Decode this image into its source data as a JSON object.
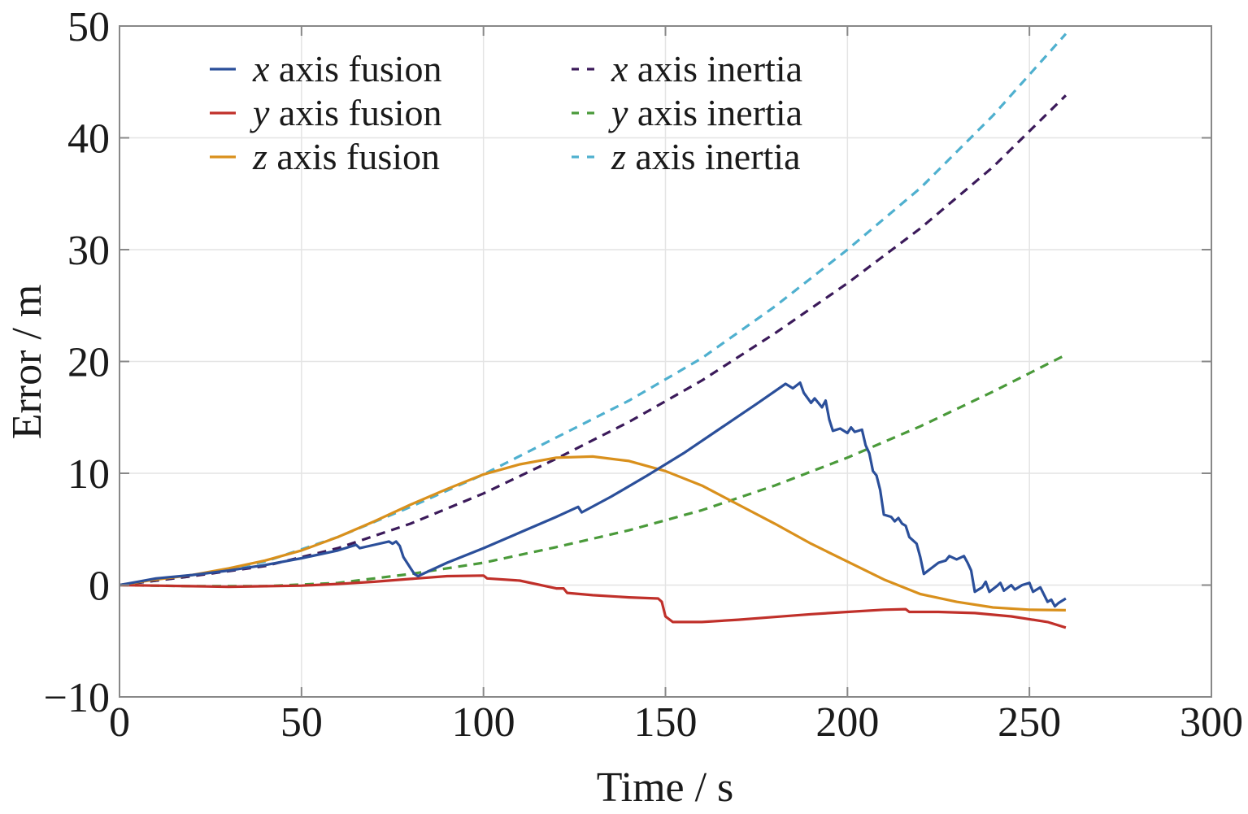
{
  "chart_data": {
    "type": "line",
    "xlabel": "Time / s",
    "ylabel": "Error / m",
    "xlim": [
      0,
      300
    ],
    "ylim": [
      -10,
      50
    ],
    "x_ticks": [
      0,
      50,
      100,
      150,
      200,
      250,
      300
    ],
    "y_ticks": [
      -10,
      0,
      10,
      20,
      30,
      40,
      50
    ],
    "x_tick_labels": [
      "0",
      "50",
      "100",
      "150",
      "200",
      "250",
      "300"
    ],
    "y_tick_labels": [
      "−10",
      "0",
      "10",
      "20",
      "30",
      "40",
      "50"
    ],
    "grid": true,
    "legend_position": "top-left",
    "series": [
      {
        "key": "x_fusion",
        "var": "x",
        "rest": " axis fusion",
        "color": "#2b4f9a",
        "dash": "solid",
        "points": [
          [
            0,
            0
          ],
          [
            5,
            0.3
          ],
          [
            10,
            0.6
          ],
          [
            20,
            0.9
          ],
          [
            30,
            1.3
          ],
          [
            40,
            1.8
          ],
          [
            50,
            2.4
          ],
          [
            60,
            3.1
          ],
          [
            65,
            3.6
          ],
          [
            66,
            3.3
          ],
          [
            70,
            3.6
          ],
          [
            74,
            3.9
          ],
          [
            75,
            3.7
          ],
          [
            76,
            3.9
          ],
          [
            77,
            3.5
          ],
          [
            78,
            2.5
          ],
          [
            80,
            1.5
          ],
          [
            81,
            1.0
          ],
          [
            82,
            0.8
          ],
          [
            90,
            2.0
          ],
          [
            100,
            3.3
          ],
          [
            110,
            4.7
          ],
          [
            120,
            6.1
          ],
          [
            126,
            7.0
          ],
          [
            127,
            6.5
          ],
          [
            135,
            7.9
          ],
          [
            145,
            9.8
          ],
          [
            155,
            11.8
          ],
          [
            165,
            14.0
          ],
          [
            175,
            16.2
          ],
          [
            183,
            18.0
          ],
          [
            185,
            17.6
          ],
          [
            187,
            18.1
          ],
          [
            188,
            17.2
          ],
          [
            190,
            16.3
          ],
          [
            191,
            16.7
          ],
          [
            193,
            15.9
          ],
          [
            194,
            16.5
          ],
          [
            195,
            14.8
          ],
          [
            196,
            13.8
          ],
          [
            198,
            14.0
          ],
          [
            200,
            13.6
          ],
          [
            201,
            14.1
          ],
          [
            202,
            13.7
          ],
          [
            204,
            13.9
          ],
          [
            205,
            12.5
          ],
          [
            206,
            11.8
          ],
          [
            207,
            10.2
          ],
          [
            208,
            9.8
          ],
          [
            209,
            8.5
          ],
          [
            210,
            6.3
          ],
          [
            212,
            6.1
          ],
          [
            213,
            5.7
          ],
          [
            214,
            6.0
          ],
          [
            215,
            5.5
          ],
          [
            216,
            5.3
          ],
          [
            217,
            4.3
          ],
          [
            219,
            3.7
          ],
          [
            220,
            2.5
          ],
          [
            221,
            1.0
          ],
          [
            223,
            1.5
          ],
          [
            225,
            2.0
          ],
          [
            227,
            2.2
          ],
          [
            228,
            2.6
          ],
          [
            230,
            2.3
          ],
          [
            232,
            2.6
          ],
          [
            233,
            2.0
          ],
          [
            234,
            1.3
          ],
          [
            235,
            -0.6
          ],
          [
            237,
            -0.2
          ],
          [
            238,
            0.3
          ],
          [
            239,
            -0.6
          ],
          [
            241,
            -0.1
          ],
          [
            242,
            0.2
          ],
          [
            243,
            -0.5
          ],
          [
            245,
            0.0
          ],
          [
            246,
            -0.4
          ],
          [
            248,
            0.0
          ],
          [
            250,
            0.2
          ],
          [
            251,
            -0.6
          ],
          [
            253,
            -0.2
          ],
          [
            255,
            -1.5
          ],
          [
            256,
            -1.3
          ],
          [
            257,
            -1.9
          ],
          [
            258,
            -1.6
          ],
          [
            260,
            -1.2
          ]
        ]
      },
      {
        "key": "y_fusion",
        "var": "y",
        "rest": " axis fusion",
        "color": "#c0302a",
        "dash": "solid",
        "points": [
          [
            0,
            0
          ],
          [
            10,
            -0.05
          ],
          [
            20,
            -0.1
          ],
          [
            30,
            -0.15
          ],
          [
            40,
            -0.1
          ],
          [
            50,
            -0.05
          ],
          [
            60,
            0.1
          ],
          [
            70,
            0.3
          ],
          [
            80,
            0.55
          ],
          [
            90,
            0.8
          ],
          [
            100,
            0.85
          ],
          [
            101,
            0.6
          ],
          [
            110,
            0.4
          ],
          [
            120,
            -0.3
          ],
          [
            122,
            -0.3
          ],
          [
            123,
            -0.7
          ],
          [
            130,
            -0.9
          ],
          [
            140,
            -1.1
          ],
          [
            148,
            -1.2
          ],
          [
            149,
            -1.5
          ],
          [
            150,
            -2.8
          ],
          [
            152,
            -3.3
          ],
          [
            160,
            -3.3
          ],
          [
            170,
            -3.1
          ],
          [
            180,
            -2.85
          ],
          [
            190,
            -2.6
          ],
          [
            200,
            -2.4
          ],
          [
            210,
            -2.2
          ],
          [
            216,
            -2.15
          ],
          [
            217,
            -2.4
          ],
          [
            225,
            -2.4
          ],
          [
            235,
            -2.5
          ],
          [
            245,
            -2.8
          ],
          [
            255,
            -3.3
          ],
          [
            260,
            -3.8
          ]
        ]
      },
      {
        "key": "z_fusion",
        "var": "z",
        "rest": " axis fusion",
        "color": "#d9901c",
        "dash": "solid",
        "points": [
          [
            0,
            0
          ],
          [
            10,
            0.5
          ],
          [
            20,
            0.9
          ],
          [
            30,
            1.5
          ],
          [
            40,
            2.2
          ],
          [
            50,
            3.1
          ],
          [
            60,
            4.3
          ],
          [
            70,
            5.7
          ],
          [
            80,
            7.2
          ],
          [
            90,
            8.6
          ],
          [
            100,
            9.9
          ],
          [
            110,
            10.8
          ],
          [
            120,
            11.4
          ],
          [
            130,
            11.5
          ],
          [
            140,
            11.1
          ],
          [
            150,
            10.2
          ],
          [
            160,
            8.9
          ],
          [
            170,
            7.2
          ],
          [
            180,
            5.5
          ],
          [
            190,
            3.7
          ],
          [
            200,
            2.1
          ],
          [
            210,
            0.5
          ],
          [
            220,
            -0.8
          ],
          [
            230,
            -1.5
          ],
          [
            240,
            -2.0
          ],
          [
            250,
            -2.2
          ],
          [
            260,
            -2.25
          ]
        ]
      },
      {
        "key": "x_inertia",
        "var": "x",
        "rest": " axis inertia",
        "color": "#3b1a5a",
        "dash": "dashed",
        "points": [
          [
            0,
            0
          ],
          [
            20,
            0.8
          ],
          [
            40,
            1.7
          ],
          [
            60,
            3.3
          ],
          [
            80,
            5.5
          ],
          [
            100,
            8.2
          ],
          [
            120,
            11.3
          ],
          [
            140,
            14.6
          ],
          [
            160,
            18.3
          ],
          [
            180,
            22.5
          ],
          [
            200,
            27.0
          ],
          [
            220,
            31.9
          ],
          [
            240,
            37.4
          ],
          [
            260,
            43.8
          ]
        ]
      },
      {
        "key": "y_inertia",
        "var": "y",
        "rest": " axis inertia",
        "color": "#4a9a3a",
        "dash": "dashed",
        "points": [
          [
            0,
            0
          ],
          [
            20,
            -0.1
          ],
          [
            40,
            -0.1
          ],
          [
            60,
            0.2
          ],
          [
            80,
            1.0
          ],
          [
            100,
            2.0
          ],
          [
            120,
            3.4
          ],
          [
            140,
            4.9
          ],
          [
            160,
            6.7
          ],
          [
            180,
            8.9
          ],
          [
            200,
            11.4
          ],
          [
            220,
            14.2
          ],
          [
            240,
            17.3
          ],
          [
            260,
            20.6
          ]
        ]
      },
      {
        "key": "z_inertia",
        "var": "z",
        "rest": " axis inertia",
        "color": "#4fb0cf",
        "dash": "dashed",
        "points": [
          [
            0,
            0
          ],
          [
            20,
            0.8
          ],
          [
            40,
            2.1
          ],
          [
            60,
            4.3
          ],
          [
            80,
            7.0
          ],
          [
            100,
            9.9
          ],
          [
            120,
            13.2
          ],
          [
            140,
            16.5
          ],
          [
            160,
            20.3
          ],
          [
            180,
            24.9
          ],
          [
            200,
            30.0
          ],
          [
            220,
            35.5
          ],
          [
            240,
            42.0
          ],
          [
            260,
            49.3
          ]
        ]
      }
    ]
  }
}
